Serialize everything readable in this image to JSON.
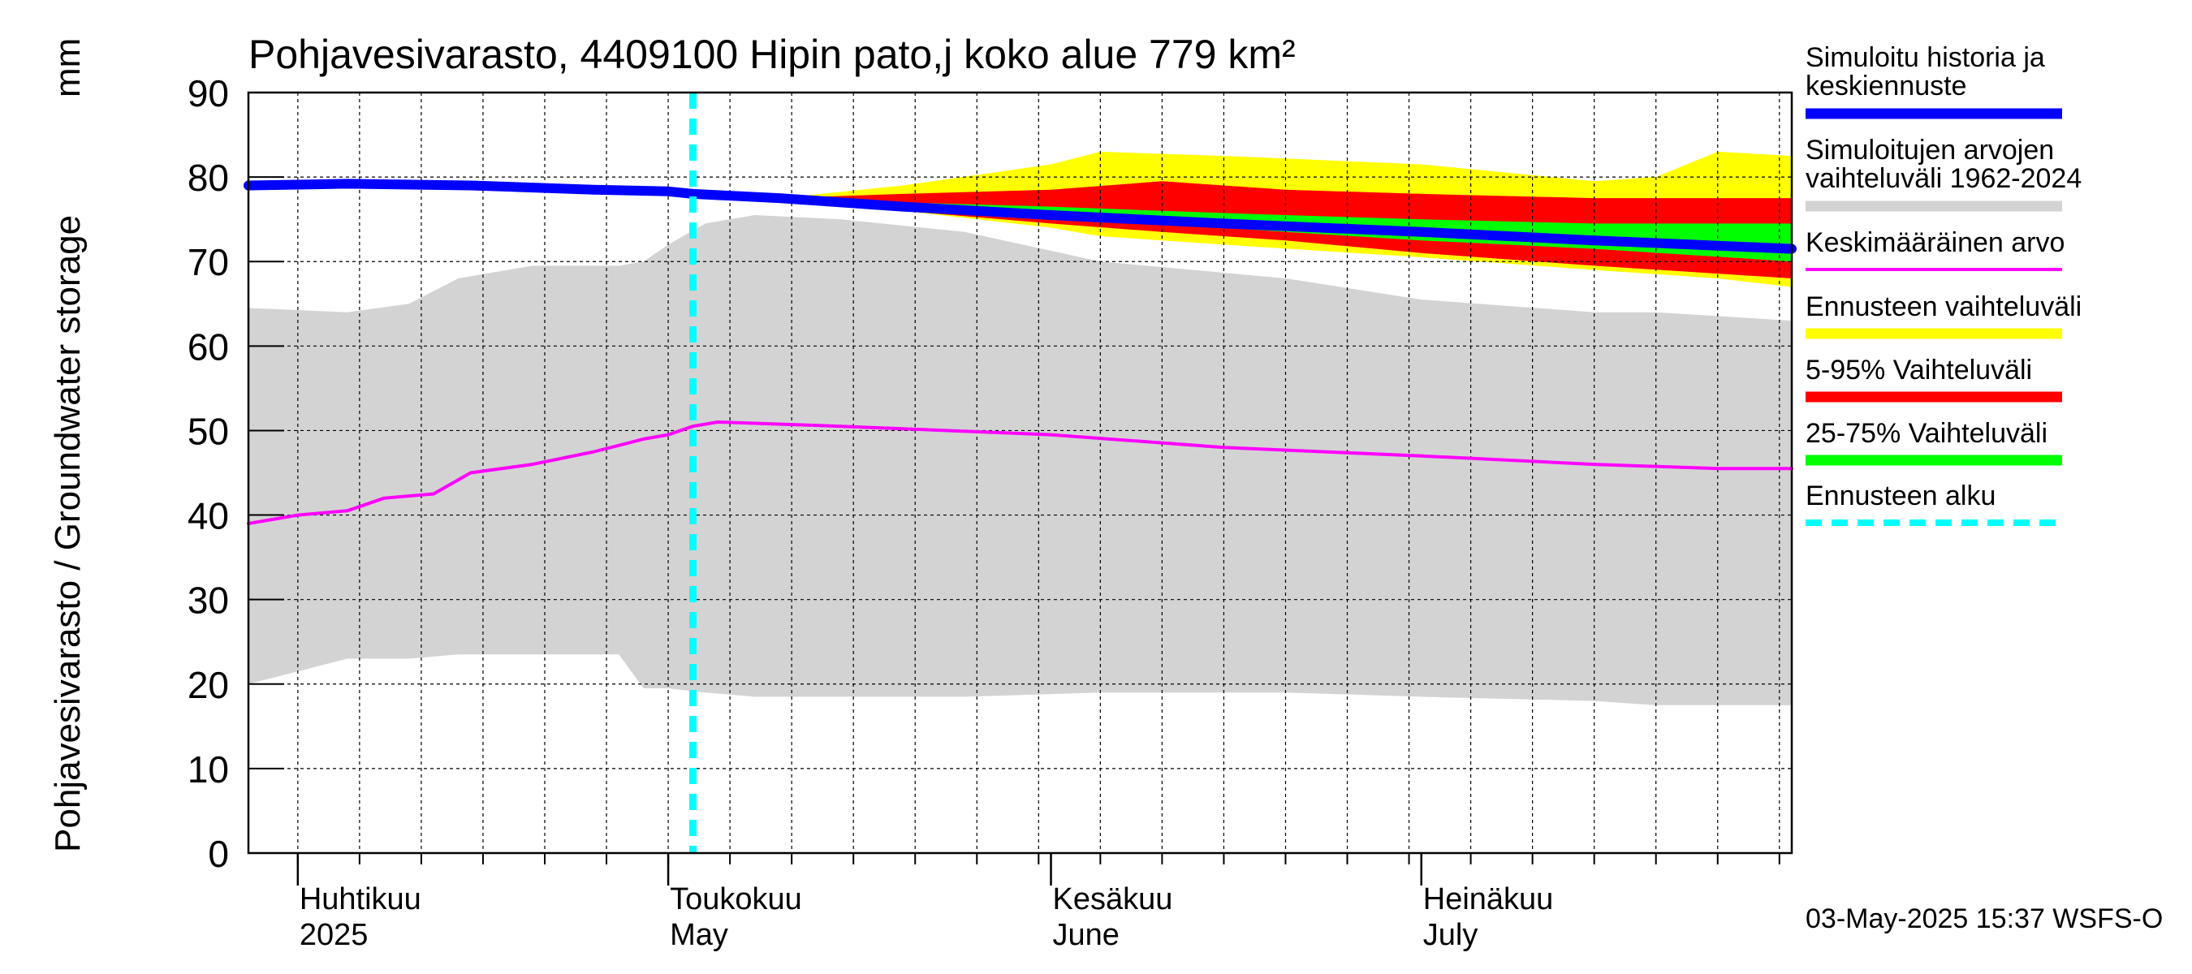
{
  "chart_data": {
    "type": "area",
    "title": "Pohjavesivarasto, 4409100 Hipin pato,j koko alue 779 km²",
    "ylabel": "Pohjavesivarasto / Groundwater storage",
    "yunit": "mm",
    "ylim": [
      0,
      90
    ],
    "yticks": [
      0,
      10,
      20,
      30,
      40,
      50,
      60,
      70,
      80,
      90
    ],
    "xlim": [
      "2025-03-28",
      "2025-07-31"
    ],
    "grid": true,
    "x_month_labels": [
      {
        "date": "2025-04-01",
        "fi": "Huhtikuu",
        "en": "2025"
      },
      {
        "date": "2025-05-01",
        "fi": "Toukokuu",
        "en": "May"
      },
      {
        "date": "2025-06-01",
        "fi": "Kesäkuu",
        "en": "June"
      },
      {
        "date": "2025-07-01",
        "fi": "Heinäkuu",
        "en": "July"
      }
    ],
    "forecast_start": "2025-05-03",
    "legend_position": "right",
    "legend": [
      {
        "label": "Simuloitu historia ja keskiennuste",
        "color": "#0000ff",
        "style": "thick"
      },
      {
        "label": "Simuloitujen arvojen vaihteluväli 1962-2024",
        "color": "#d3d3d3",
        "style": "band"
      },
      {
        "label": "Keskimääräinen arvo",
        "color": "#ff00ff",
        "style": "thin"
      },
      {
        "label": "Ennusteen vaihteluväli",
        "color": "#ffff00",
        "style": "band"
      },
      {
        "label": "5-95% Vaihteluväli",
        "color": "#ff0000",
        "style": "band"
      },
      {
        "label": "25-75% Vaihteluväli",
        "color": "#00ff00",
        "style": "band"
      },
      {
        "label": "Ennusteen alku",
        "color": "#00ffff",
        "style": "dashed"
      }
    ],
    "series": [
      {
        "kind": "band",
        "color": "#d3d3d3",
        "x": [
          "2025-03-28",
          "2025-04-05",
          "2025-04-10",
          "2025-04-14",
          "2025-04-20",
          "2025-04-27",
          "2025-04-29",
          "2025-05-01",
          "2025-05-04",
          "2025-05-08",
          "2025-05-15",
          "2025-05-25",
          "2025-06-05",
          "2025-06-20",
          "2025-07-01",
          "2025-07-15",
          "2025-07-20",
          "2025-07-31"
        ],
        "low": [
          20,
          23,
          23,
          23.5,
          23.5,
          23.5,
          19.5,
          19.5,
          19,
          18.5,
          18.5,
          18.5,
          19,
          19,
          18.5,
          18,
          17.5,
          17.5
        ],
        "high": [
          64.5,
          64,
          65,
          68,
          69.5,
          69.5,
          70,
          72,
          74.5,
          75.5,
          75,
          73.5,
          70,
          68,
          65.5,
          64,
          64,
          63
        ]
      },
      {
        "kind": "band",
        "color": "#ffff00",
        "x": [
          "2025-05-10",
          "2025-05-20",
          "2025-06-01",
          "2025-06-05",
          "2025-06-15",
          "2025-07-01",
          "2025-07-15",
          "2025-07-20",
          "2025-07-25",
          "2025-07-31"
        ],
        "low": [
          77.5,
          76,
          74,
          73,
          72,
          70.5,
          69,
          68.5,
          68,
          67
        ],
        "high": [
          77.5,
          79,
          81.5,
          83,
          82.5,
          81.5,
          79.5,
          80,
          83,
          82.5
        ]
      },
      {
        "kind": "band",
        "color": "#ff0000",
        "x": [
          "2025-05-10",
          "2025-05-20",
          "2025-06-01",
          "2025-06-10",
          "2025-06-20",
          "2025-07-01",
          "2025-07-15",
          "2025-07-31"
        ],
        "low": [
          77.5,
          76,
          74.5,
          73.5,
          72.5,
          71,
          69.5,
          68
        ],
        "high": [
          77.5,
          78,
          78.5,
          79.5,
          78.5,
          78,
          77.5,
          77.5
        ]
      },
      {
        "kind": "band",
        "color": "#00ff00",
        "x": [
          "2025-05-10",
          "2025-05-20",
          "2025-06-01",
          "2025-06-10",
          "2025-06-20",
          "2025-07-01",
          "2025-07-15",
          "2025-07-31"
        ],
        "low": [
          77.5,
          76.5,
          75.5,
          74.5,
          73.5,
          72.5,
          71.5,
          70
        ],
        "high": [
          77.5,
          77,
          76.5,
          76,
          75.5,
          75,
          74.5,
          74.5
        ]
      },
      {
        "kind": "line",
        "color": "#ff00ff",
        "width": 4,
        "x": [
          "2025-03-28",
          "2025-04-01",
          "2025-04-05",
          "2025-04-08",
          "2025-04-12",
          "2025-04-15",
          "2025-04-20",
          "2025-04-25",
          "2025-04-29",
          "2025-05-01",
          "2025-05-03",
          "2025-05-05",
          "2025-05-15",
          "2025-06-01",
          "2025-06-15",
          "2025-07-01",
          "2025-07-15",
          "2025-07-25",
          "2025-07-31"
        ],
        "values": [
          39,
          40,
          40.5,
          42,
          42.5,
          45,
          46,
          47.5,
          49,
          49.5,
          50.5,
          51,
          50.5,
          49.5,
          48,
          47,
          46,
          45.5,
          45.5
        ]
      },
      {
        "kind": "line",
        "color": "#0000ff",
        "width": 12,
        "x": [
          "2025-03-28",
          "2025-04-05",
          "2025-04-15",
          "2025-04-25",
          "2025-05-01",
          "2025-05-03",
          "2025-05-10",
          "2025-05-20",
          "2025-06-01",
          "2025-06-15",
          "2025-07-01",
          "2025-07-15",
          "2025-07-31"
        ],
        "values": [
          79,
          79.2,
          79,
          78.5,
          78.3,
          78,
          77.5,
          76.5,
          75.5,
          74.5,
          73.5,
          72.5,
          71.5
        ]
      }
    ]
  },
  "footer": {
    "timestamp": "03-May-2025 15:37 WSFS-O"
  }
}
